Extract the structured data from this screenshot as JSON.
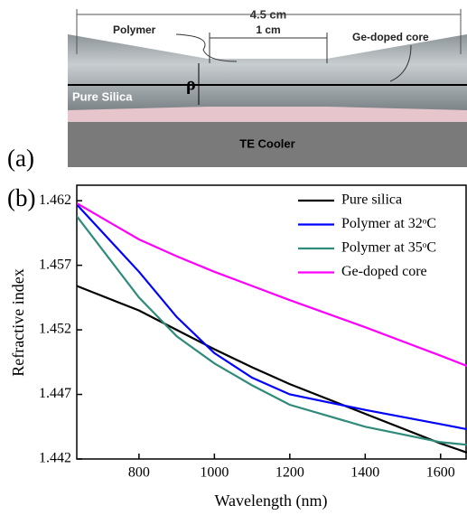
{
  "panel_a": {
    "label": "(a)",
    "total_length": "4.5 cm",
    "polymer": "Polymer",
    "middle_length": "1 cm",
    "core": "Ge-doped core",
    "radius": "ρ",
    "cladding": "Pure Silica",
    "cooler": "TE Cooler"
  },
  "chart_data": {
    "type": "line",
    "panel_label": "(b)",
    "x_label": "Wavelength (nm)",
    "y_label": "Refractive index",
    "x": [
      635,
      800,
      900,
      1000,
      1100,
      1200,
      1400,
      1600,
      1670
    ],
    "series": [
      {
        "name": "Pure silica",
        "color": "#000000",
        "values": [
          1.4554,
          1.4535,
          1.452,
          1.4505,
          1.4491,
          1.4478,
          1.4455,
          1.4432,
          1.4425
        ]
      },
      {
        "name": "Polymer at 32ᵒC",
        "color": "#0000ff",
        "values": [
          1.4617,
          1.4565,
          1.453,
          1.4502,
          1.4483,
          1.447,
          1.4458,
          1.4447,
          1.4443
        ]
      },
      {
        "name": "Polymer at 35ᵒC",
        "color": "#2e8b7a",
        "values": [
          1.4608,
          1.4545,
          1.4515,
          1.4494,
          1.4477,
          1.4462,
          1.4445,
          1.4433,
          1.4431
        ]
      },
      {
        "name": "Ge-doped core",
        "color": "#ff00ff",
        "values": [
          1.4618,
          1.459,
          1.4577,
          1.4565,
          1.4554,
          1.4543,
          1.4522,
          1.45,
          1.4492
        ]
      }
    ],
    "xlim": [
      635,
      1670
    ],
    "ylim": [
      1.442,
      1.4632
    ],
    "xticks": [
      800,
      1000,
      1200,
      1400,
      1600
    ],
    "yticks": [
      1.442,
      1.447,
      1.452,
      1.457,
      1.462
    ],
    "legend": "upper right"
  }
}
